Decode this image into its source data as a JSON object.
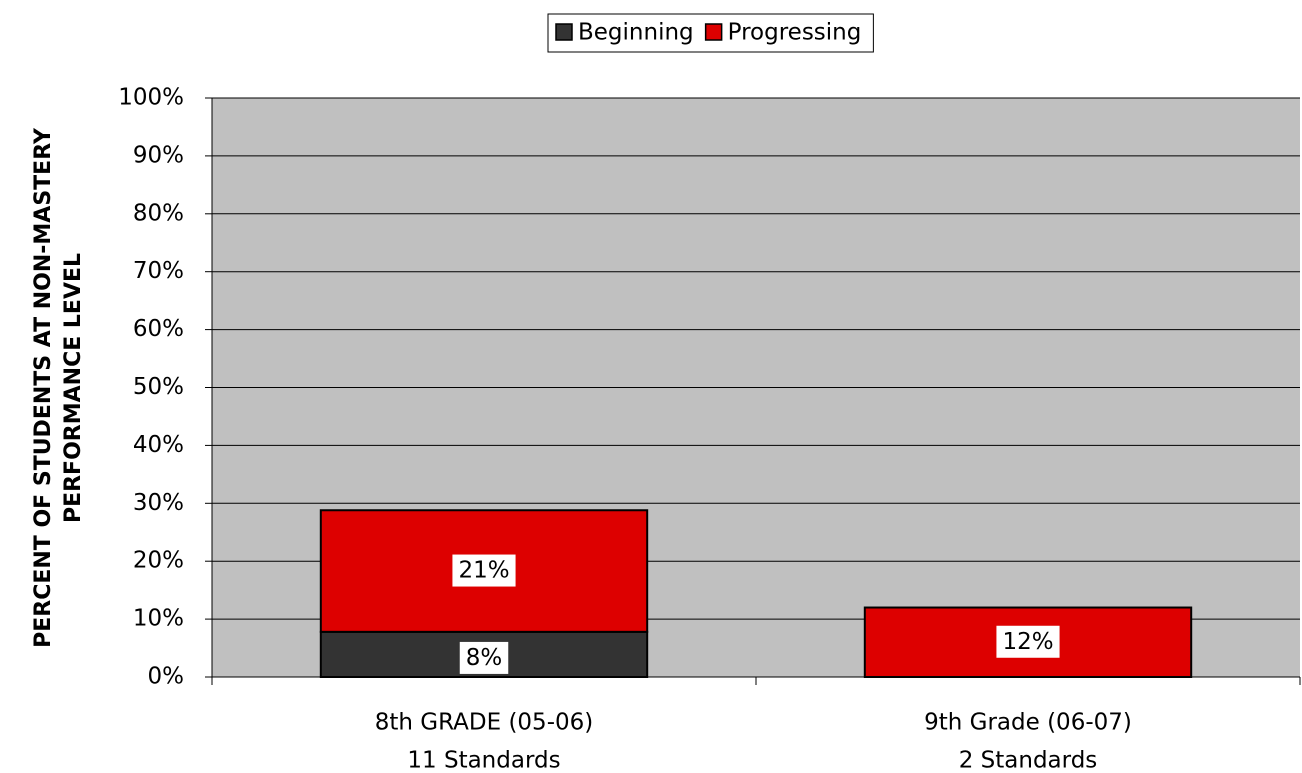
{
  "chart_data": {
    "type": "stacked_bar",
    "ylabel": [
      "PERCENT OF STUDENTS AT NON-MASTERY",
      "PERFORMANCE LEVEL"
    ],
    "categories": [
      [
        "8th GRADE (05-06)",
        "11 Standards"
      ],
      [
        "9th Grade (06-07)",
        "2 Standards"
      ]
    ],
    "series": [
      {
        "name": "Beginning",
        "color": "#333333",
        "values": [
          7.8,
          0
        ],
        "value_labels": [
          "8%",
          null
        ]
      },
      {
        "name": "Progressing",
        "color": "#dd0000",
        "values": [
          21,
          12
        ],
        "value_labels": [
          "21%",
          "12%"
        ]
      }
    ],
    "ylim": [
      0,
      100
    ],
    "yticks": [
      {
        "value": 0,
        "label": "0%"
      },
      {
        "value": 10,
        "label": "10%"
      },
      {
        "value": 20,
        "label": "20%"
      },
      {
        "value": 30,
        "label": "30%"
      },
      {
        "value": 40,
        "label": "40%"
      },
      {
        "value": 50,
        "label": "50%"
      },
      {
        "value": 60,
        "label": "60%"
      },
      {
        "value": 70,
        "label": "70%"
      },
      {
        "value": 80,
        "label": "80%"
      },
      {
        "value": 90,
        "label": "90%"
      },
      {
        "value": 100,
        "label": "100%"
      }
    ],
    "grid": true,
    "legend": "top",
    "plot_background": "#c0c0c0"
  }
}
